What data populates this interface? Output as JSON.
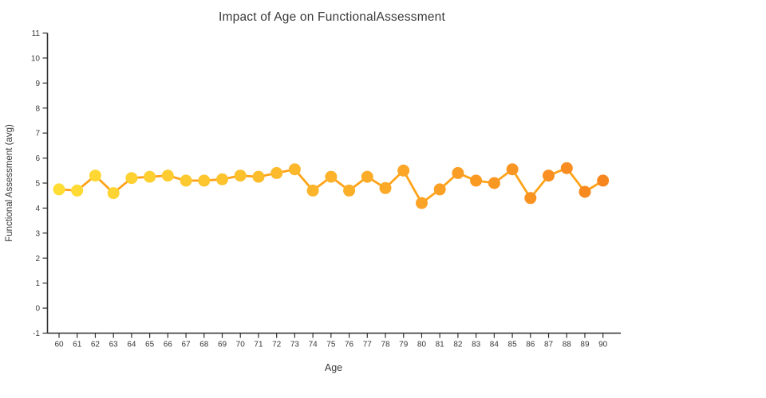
{
  "chart_data": {
    "type": "line",
    "title": "Impact of Age on FunctionalAssessment",
    "xlabel": "Age",
    "ylabel": "Functional Assessment (avg)",
    "x": [
      60,
      61,
      62,
      63,
      64,
      65,
      66,
      67,
      68,
      69,
      70,
      71,
      72,
      73,
      74,
      75,
      76,
      77,
      78,
      79,
      80,
      81,
      82,
      83,
      84,
      85,
      86,
      87,
      88,
      89,
      90
    ],
    "y": [
      4.75,
      4.7,
      5.3,
      4.6,
      5.2,
      5.25,
      5.3,
      5.1,
      5.1,
      5.15,
      5.3,
      5.25,
      5.4,
      5.55,
      4.7,
      5.25,
      4.7,
      5.25,
      4.8,
      5.5,
      4.2,
      4.75,
      5.4,
      5.1,
      5.0,
      5.55,
      4.4,
      5.3,
      5.6,
      4.65,
      5.1
    ],
    "xlim": [
      60,
      90
    ],
    "ylim": [
      -1,
      11
    ],
    "xticks": [
      60,
      61,
      62,
      63,
      64,
      65,
      66,
      67,
      68,
      69,
      70,
      71,
      72,
      73,
      74,
      75,
      76,
      77,
      78,
      79,
      80,
      81,
      82,
      83,
      84,
      85,
      86,
      87,
      88,
      89,
      90
    ],
    "yticks": [
      -1,
      0,
      1,
      2,
      3,
      4,
      5,
      6,
      7,
      8,
      9,
      10,
      11
    ],
    "grid": false,
    "legend": false,
    "marker_size": 15,
    "colors": {
      "line": "#ffa319",
      "marker_gradient_start": "#ffdd35",
      "marker_gradient_end": "#f8861e",
      "axis": "#2f2f2f",
      "tick_text": "#3b3b3b",
      "title_text": "#3a3a3a"
    }
  }
}
